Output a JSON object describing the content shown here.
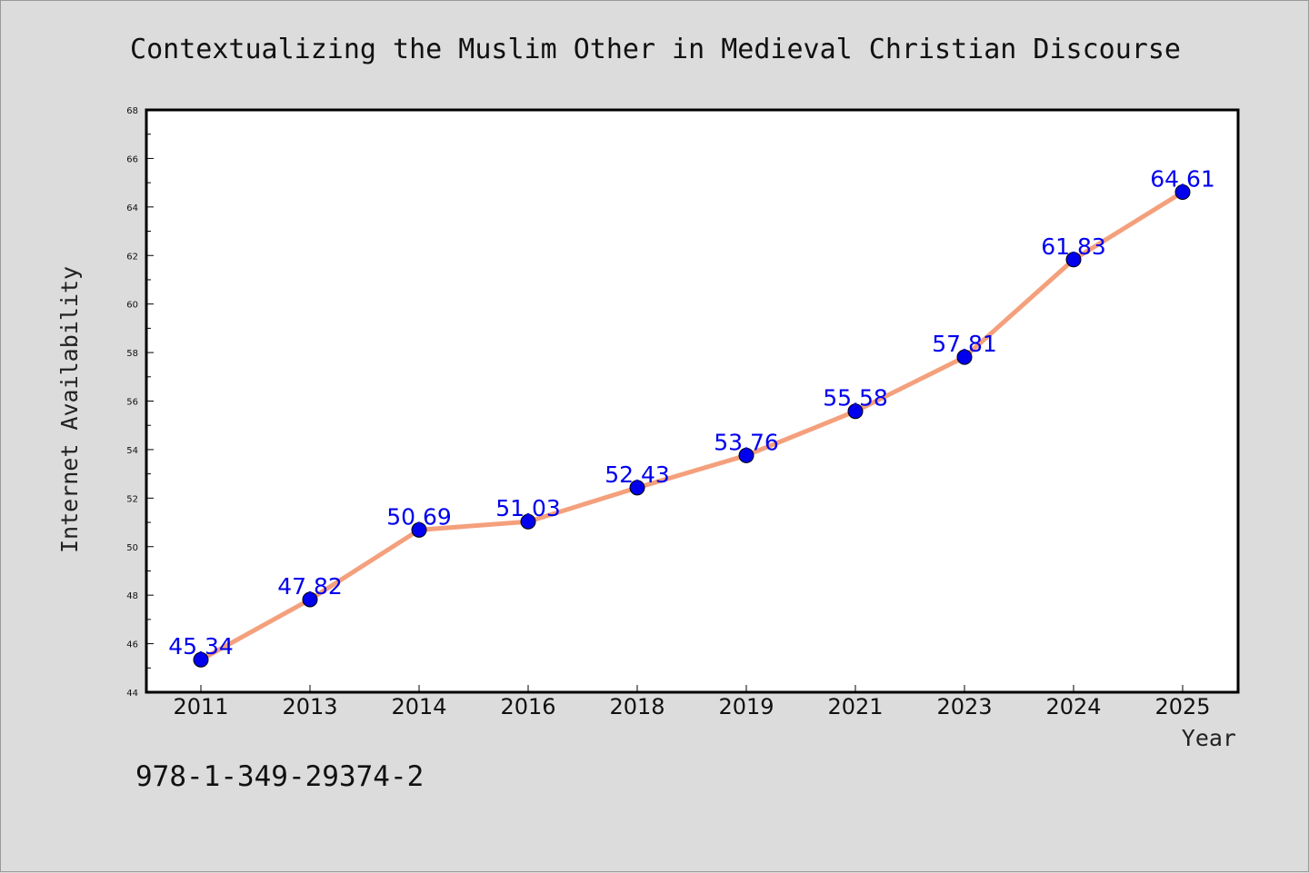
{
  "chart_data": {
    "type": "line",
    "title": "Contextualizing the Muslim Other in Medieval Christian Discourse",
    "xlabel": "Year",
    "ylabel": "Internet Availability",
    "categories": [
      "2011",
      "2013",
      "2014",
      "2016",
      "2018",
      "2019",
      "2021",
      "2023",
      "2024",
      "2025"
    ],
    "values": [
      45.34,
      47.82,
      50.69,
      51.03,
      52.43,
      53.76,
      55.58,
      57.81,
      61.83,
      64.61
    ],
    "data_labels": [
      "45.34",
      "47.82",
      "50.69",
      "51.03",
      "52.43",
      "53.76",
      "55.58",
      "57.81",
      "61.83",
      "64.61"
    ],
    "ylim": [
      44,
      68
    ],
    "yticks": [
      "44",
      "46",
      "48",
      "50",
      "52",
      "54",
      "56",
      "58",
      "60",
      "62",
      "64",
      "66",
      "68"
    ],
    "grid": false,
    "colors": {
      "line": "#f4a07c",
      "marker": "#0000ee",
      "label": "#0000ee",
      "background": "#dcdcdc",
      "plot": "#ffffff"
    }
  },
  "footer_text": "978-1-349-29374-2"
}
